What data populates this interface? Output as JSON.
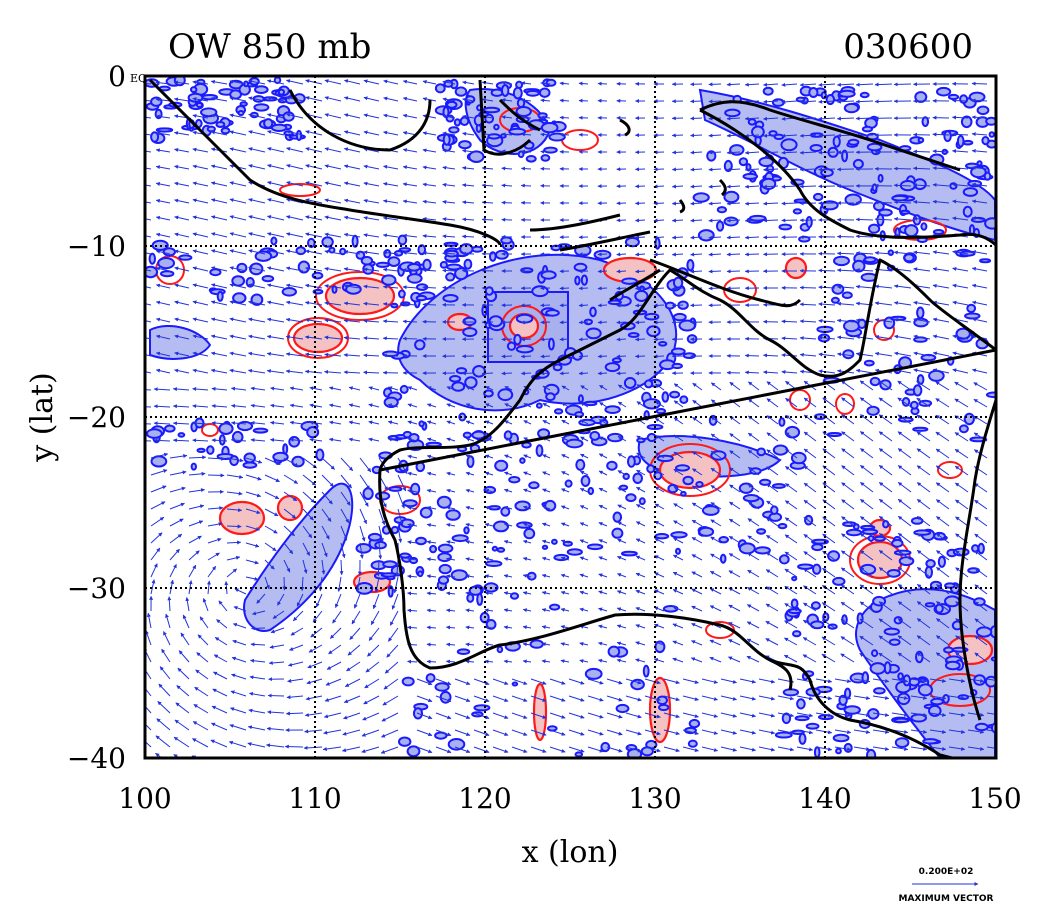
{
  "title_left": "OW 850 mb",
  "title_right": "030600",
  "x_axis_label": "x (lon)",
  "y_axis_label": "y (lat)",
  "x_ticks": [
    "100",
    "110",
    "120",
    "130",
    "140",
    "150"
  ],
  "y_ticks": [
    "0",
    "−10",
    "−20",
    "−30",
    "−40"
  ],
  "corner_label": "EQ",
  "legend": {
    "vector_magnitude": "0.200E+02",
    "vector_caption": "MAXIMUM VECTOR"
  },
  "colors": {
    "positive_contour": "#ff1a1a",
    "positive_fill": "#f4c2c2",
    "negative_contour": "#1a1aff",
    "negative_fill": "#a8b0ee",
    "coastline": "#000000",
    "vector": "#2233dd"
  },
  "chart_data": {
    "type": "map",
    "field": "OW",
    "level": "850 mb",
    "time": "030600",
    "xlim": [
      100,
      150
    ],
    "ylim": [
      -40,
      0
    ],
    "grid": true
  }
}
